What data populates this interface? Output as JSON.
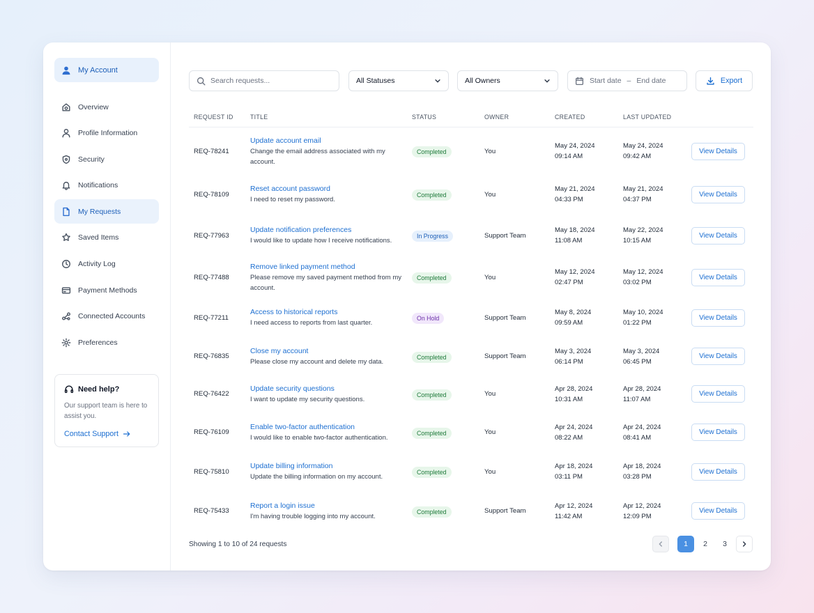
{
  "sidebar": {
    "account": {
      "label": "My Account",
      "icon": "user-icon"
    },
    "items": [
      {
        "label": "Overview",
        "icon": "dashboard-icon"
      },
      {
        "label": "Profile Information",
        "icon": "profile-icon"
      },
      {
        "label": "Security",
        "icon": "shield-icon"
      },
      {
        "label": "Notifications",
        "icon": "bell-icon"
      },
      {
        "label": "My Requests",
        "icon": "document-icon",
        "active": true
      },
      {
        "label": "Saved Items",
        "icon": "bookmark-icon"
      },
      {
        "label": "Activity Log",
        "icon": "clock-icon"
      },
      {
        "label": "Payment Methods",
        "icon": "credit-card-icon"
      },
      {
        "label": "Connected Accounts",
        "icon": "link-icon"
      },
      {
        "label": "Preferences",
        "icon": "gear-icon"
      }
    ],
    "help": {
      "title": "Need help?",
      "text": "Our support team is here to assist you.",
      "link": "Contact Support"
    }
  },
  "toolbar": {
    "search_placeholder": "Search requests...",
    "status_filter": "All Statuses",
    "owner_filter": "All Owners",
    "start_date_placeholder": "Start date",
    "date_separator": "–",
    "end_date_placeholder": "End date",
    "export_label": "Export"
  },
  "table": {
    "headers": {
      "id": "REQUEST ID",
      "title": "TITLE",
      "status": "STATUS",
      "owner": "OWNER",
      "created": "CREATED",
      "updated": "LAST UPDATED"
    },
    "action_label": "View Details",
    "rows": [
      {
        "id": "REQ-78241",
        "title": "Update account email",
        "desc": "Change the email address associated with my account.",
        "status": "Completed",
        "owner": "You",
        "created_date": "May 24, 2024",
        "created_time": "09:14 AM",
        "updated_date": "May 24, 2024",
        "updated_time": "09:42 AM"
      },
      {
        "id": "REQ-78109",
        "title": "Reset account password",
        "desc": "I need to reset my password.",
        "status": "Completed",
        "owner": "You",
        "created_date": "May 21, 2024",
        "created_time": "04:33 PM",
        "updated_date": "May 21, 2024",
        "updated_time": "04:37 PM"
      },
      {
        "id": "REQ-77963",
        "title": "Update notification preferences",
        "desc": "I would like to update how I receive notifications.",
        "status": "In Progress",
        "owner": "Support Team",
        "created_date": "May 18, 2024",
        "created_time": "11:08 AM",
        "updated_date": "May 22, 2024",
        "updated_time": "10:15 AM"
      },
      {
        "id": "REQ-77488",
        "title": "Remove linked payment method",
        "desc": "Please remove my saved payment method from my account.",
        "status": "Completed",
        "owner": "You",
        "created_date": "May 12, 2024",
        "created_time": "02:47 PM",
        "updated_date": "May 12, 2024",
        "updated_time": "03:02 PM"
      },
      {
        "id": "REQ-77211",
        "title": "Access to historical reports",
        "desc": "I need access to reports from last quarter.",
        "status": "On Hold",
        "owner": "Support Team",
        "created_date": "May 8, 2024",
        "created_time": "09:59 AM",
        "updated_date": "May 10, 2024",
        "updated_time": "01:22 PM"
      },
      {
        "id": "REQ-76835",
        "title": "Close my account",
        "desc": "Please close my account and delete my data.",
        "status": "Completed",
        "owner": "Support Team",
        "created_date": "May 3, 2024",
        "created_time": "06:14 PM",
        "updated_date": "May 3, 2024",
        "updated_time": "06:45 PM"
      },
      {
        "id": "REQ-76422",
        "title": "Update security questions",
        "desc": "I want to update my security questions.",
        "status": "Completed",
        "owner": "You",
        "created_date": "Apr 28, 2024",
        "created_time": "10:31 AM",
        "updated_date": "Apr 28, 2024",
        "updated_time": "11:07 AM"
      },
      {
        "id": "REQ-76109",
        "title": "Enable two-factor authentication",
        "desc": "I would like to enable two-factor authentication.",
        "status": "Completed",
        "owner": "You",
        "created_date": "Apr 24, 2024",
        "created_time": "08:22 AM",
        "updated_date": "Apr 24, 2024",
        "updated_time": "08:41 AM"
      },
      {
        "id": "REQ-75810",
        "title": "Update billing information",
        "desc": "Update the billing information on my account.",
        "status": "Completed",
        "owner": "You",
        "created_date": "Apr 18, 2024",
        "created_time": "03:11 PM",
        "updated_date": "Apr 18, 2024",
        "updated_time": "03:28 PM"
      },
      {
        "id": "REQ-75433",
        "title": "Report a login issue",
        "desc": "I'm having trouble logging into my account.",
        "status": "Completed",
        "owner": "Support Team",
        "created_date": "Apr 12, 2024",
        "created_time": "11:42 AM",
        "updated_date": "Apr 12, 2024",
        "updated_time": "12:09 PM"
      }
    ]
  },
  "footer": {
    "showing": "Showing 1 to 10 of 24 requests",
    "pages": [
      "1",
      "2",
      "3"
    ],
    "current_page": "1"
  },
  "colors": {
    "accent": "#1d6fd1",
    "completed_bg": "#e7f6ea",
    "in_progress_bg": "#e6f0fc",
    "on_hold_bg": "#f1e7fb"
  }
}
